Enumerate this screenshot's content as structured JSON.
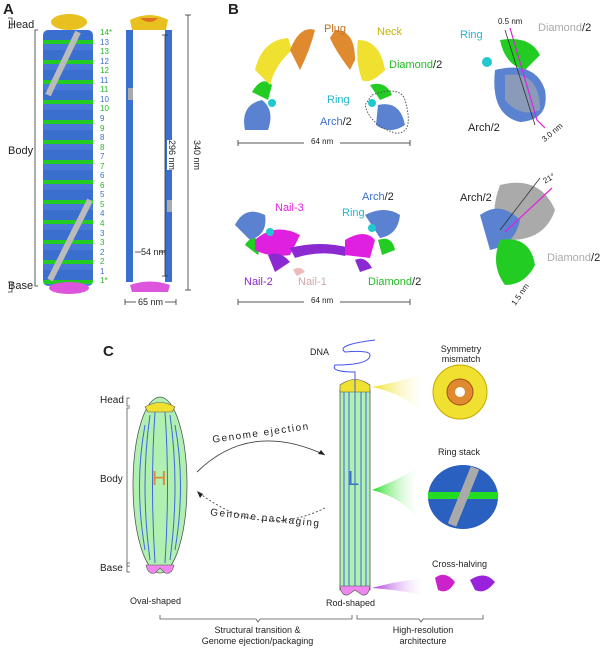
{
  "panel_a": {
    "letter": "A",
    "head": "Head",
    "body": "Body",
    "base": "Base",
    "layers": [
      {
        "t": "14*",
        "c": "#22bb22"
      },
      {
        "t": "13",
        "c": "#3a6fd0"
      },
      {
        "t": "13",
        "c": "#22bb22"
      },
      {
        "t": "12",
        "c": "#3a6fd0"
      },
      {
        "t": "12",
        "c": "#22bb22"
      },
      {
        "t": "11",
        "c": "#3a6fd0"
      },
      {
        "t": "11",
        "c": "#22bb22"
      },
      {
        "t": "10",
        "c": "#3a6fd0"
      },
      {
        "t": "10",
        "c": "#22bb22"
      },
      {
        "t": "9",
        "c": "#3a6fd0"
      },
      {
        "t": "9",
        "c": "#22bb22"
      },
      {
        "t": "8",
        "c": "#3a6fd0"
      },
      {
        "t": "8",
        "c": "#22bb22"
      },
      {
        "t": "7",
        "c": "#3a6fd0"
      },
      {
        "t": "7",
        "c": "#22bb22"
      },
      {
        "t": "6",
        "c": "#3a6fd0"
      },
      {
        "t": "6",
        "c": "#22bb22"
      },
      {
        "t": "5",
        "c": "#3a6fd0"
      },
      {
        "t": "5",
        "c": "#22bb22"
      },
      {
        "t": "4",
        "c": "#3a6fd0"
      },
      {
        "t": "4",
        "c": "#22bb22"
      },
      {
        "t": "3",
        "c": "#3a6fd0"
      },
      {
        "t": "3",
        "c": "#22bb22"
      },
      {
        "t": "2",
        "c": "#3a6fd0"
      },
      {
        "t": "2",
        "c": "#22bb22"
      },
      {
        "t": "1",
        "c": "#3a6fd0"
      },
      {
        "t": "1*",
        "c": "#22bb22"
      }
    ],
    "dim_length": "340 nm",
    "dim_inner": "296 nm",
    "dim_lumen": "54 nm",
    "dim_width": "65 nm"
  },
  "panel_b": {
    "letter": "B",
    "top_left": {
      "plug": "Plug",
      "neck": "Neck",
      "diamond": "Diamond",
      "ring": "Ring",
      "arch": "Arch",
      "half": "/2",
      "scale": "64 nm"
    },
    "top_right": {
      "ring": "Ring",
      "diamond": "Diamond",
      "half": "/2",
      "arch": "Arch/2",
      "d1": "0.5 nm",
      "d2": "3.0 nm"
    },
    "bottom_left": {
      "nail3": "Nail-3",
      "arch": "Arch",
      "half": "/2",
      "ring": "Ring",
      "nail2": "Nail-2",
      "nail1": "Nail-1",
      "diamond": "Diamond",
      "scale": "64 nm"
    },
    "bottom_right": {
      "arch": "Arch/2",
      "angle": "21°",
      "diamond": "Diamond",
      "half": "/2",
      "d": "1.5 nm"
    }
  },
  "panel_c": {
    "letter": "C",
    "head": "Head",
    "body": "Body",
    "base": "Base",
    "h": "H",
    "l": "L",
    "dna": "DNA",
    "ejection": "Genome ejection",
    "packaging": "Genome packaging",
    "oval": "Oval-shaped",
    "rod": "Rod-shaped",
    "sym": "Symmetry mismatch",
    "ringstack": "Ring stack",
    "cross": "Cross-halving",
    "brace_left_1": "Structural transition &",
    "brace_left_2": "Genome ejection/packaging",
    "brace_right_1": "High-resolution",
    "brace_right_2": "architecture"
  },
  "colors": {
    "blue": "#3a6fd0",
    "green": "#22cc22",
    "yellow": "#f0e030",
    "orange": "#e08a30",
    "magenta": "#dd33dd",
    "purple": "#8a2ad0",
    "cyan": "#22c8d0",
    "gray": "#aaaaaa",
    "rod_fill": "#b0f0b0"
  }
}
